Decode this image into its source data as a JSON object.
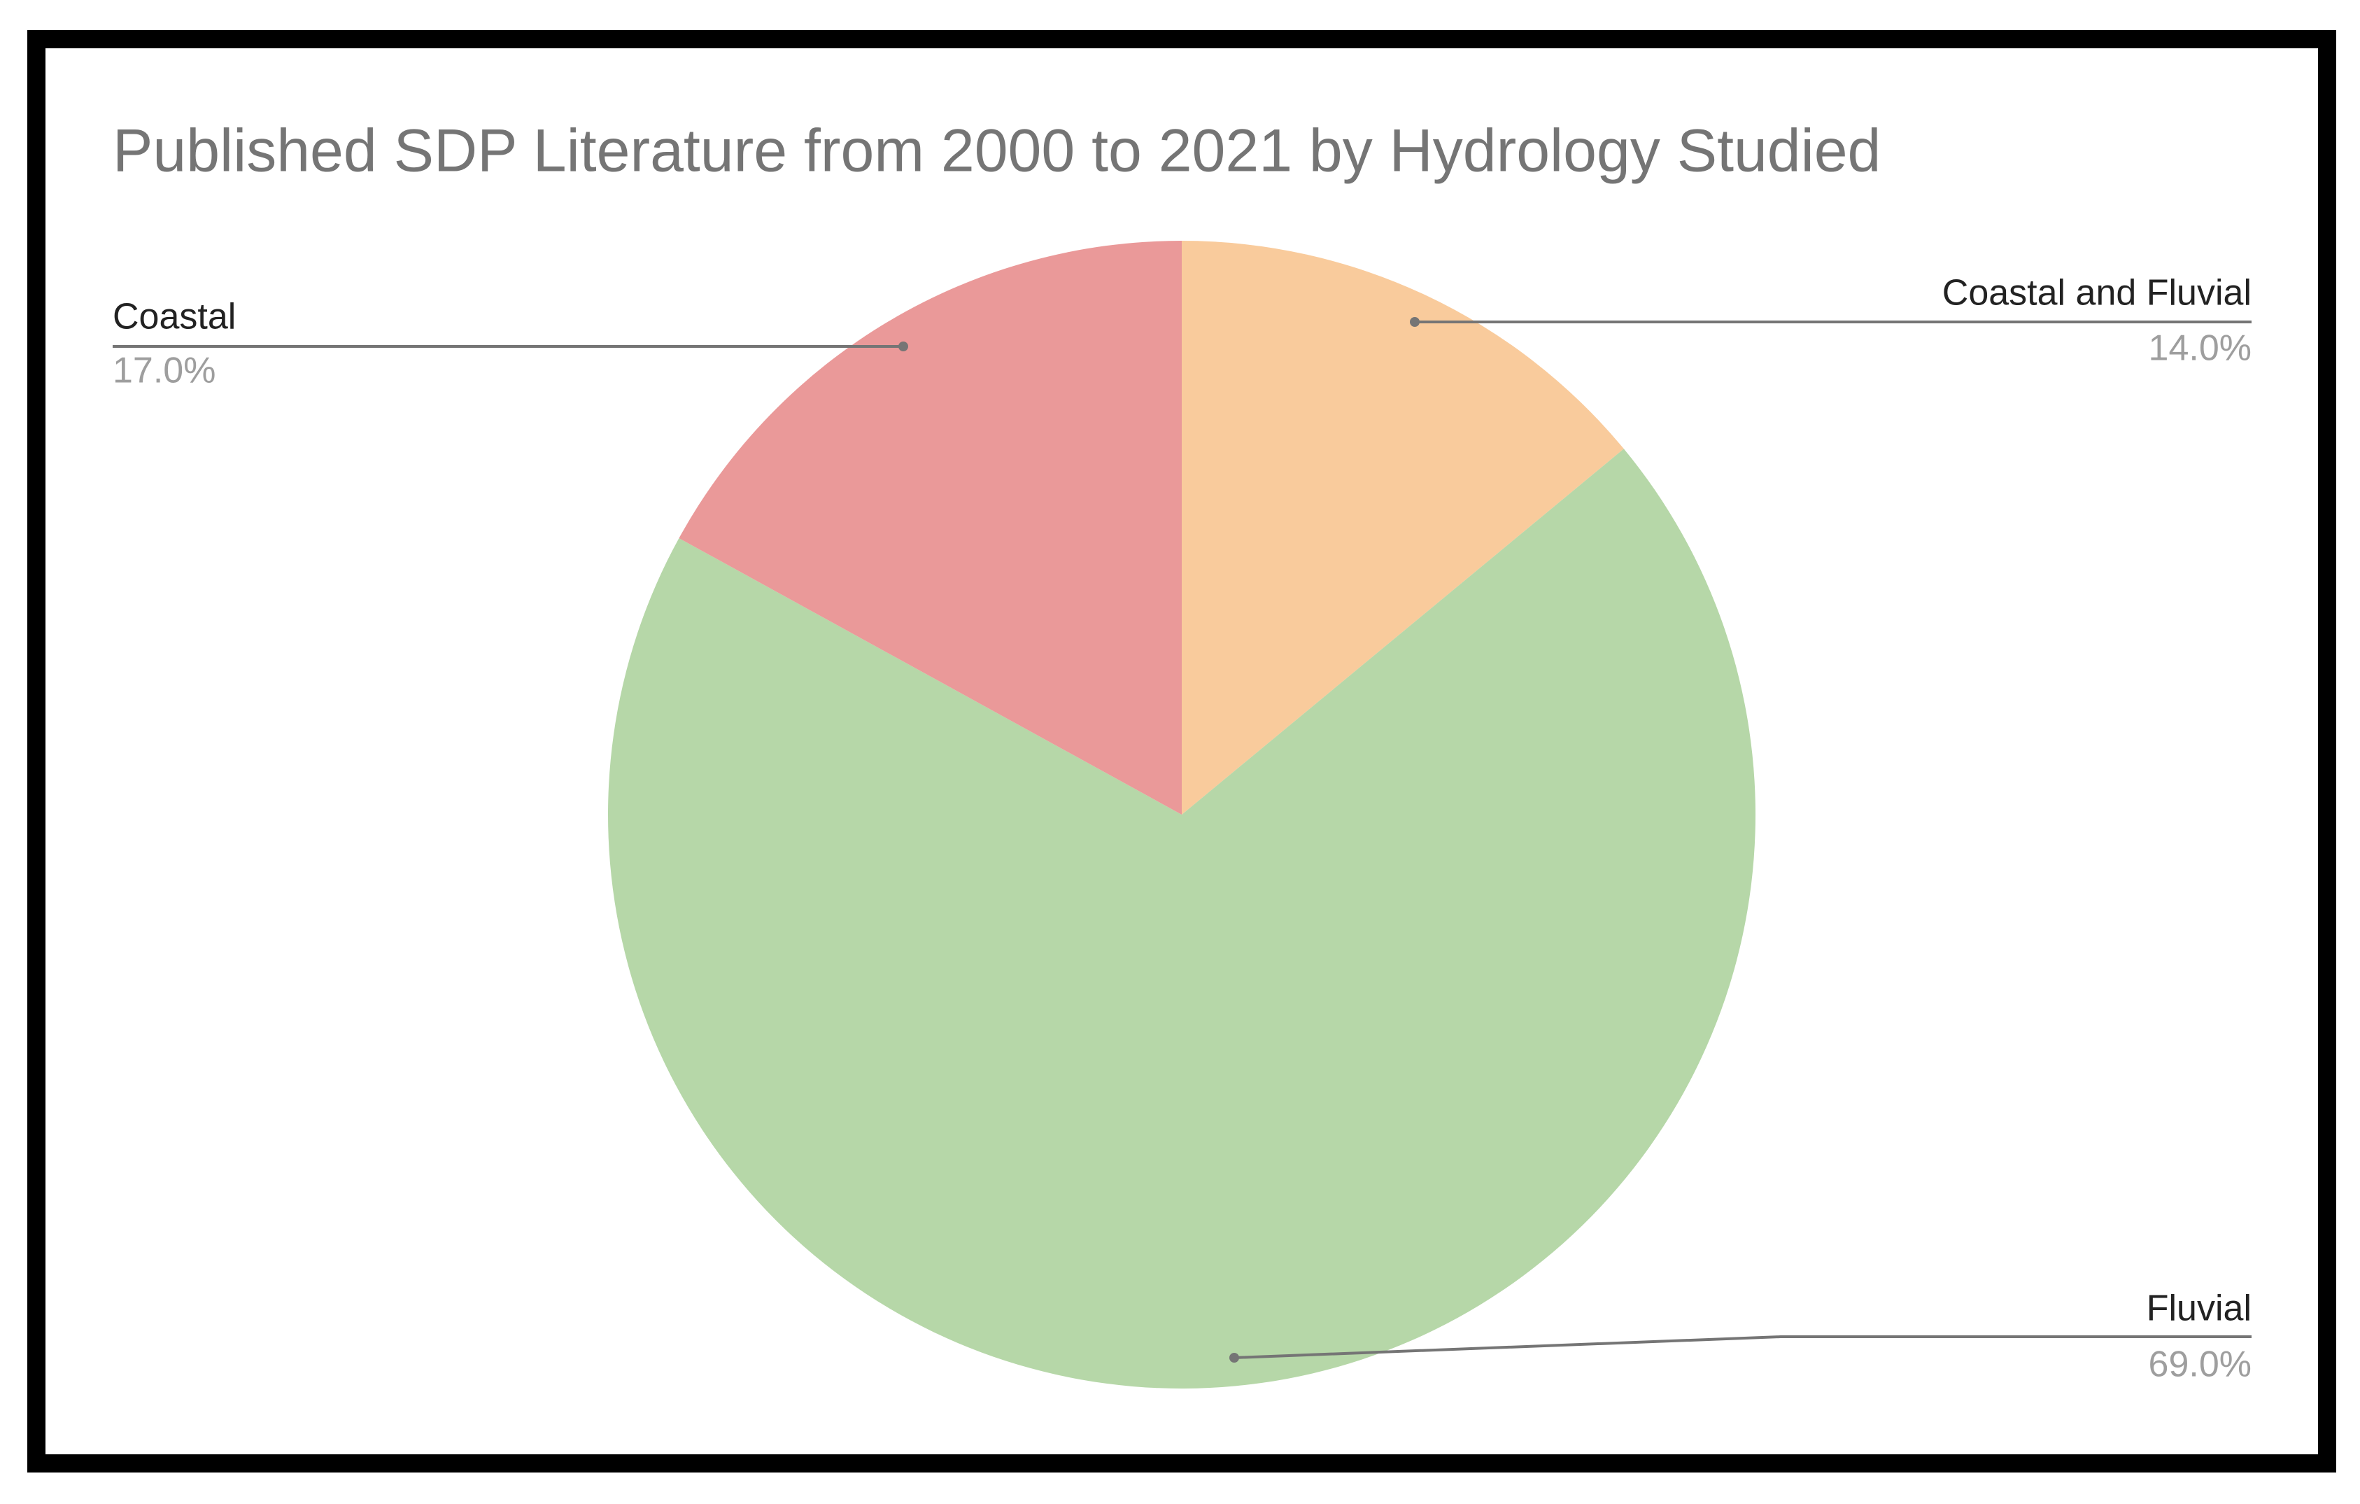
{
  "chart_data": {
    "type": "pie",
    "title": "Published SDP Literature from 2000 to 2021 by Hydrology Studied",
    "categories": [
      "Coastal and Fluvial",
      "Fluvial",
      "Coastal"
    ],
    "values": [
      14,
      69,
      17
    ],
    "value_labels": [
      "14.0%",
      "69.0%",
      "17.0%"
    ],
    "colors": [
      "#f9cb9c",
      "#b6d7a8",
      "#ea9999"
    ]
  }
}
